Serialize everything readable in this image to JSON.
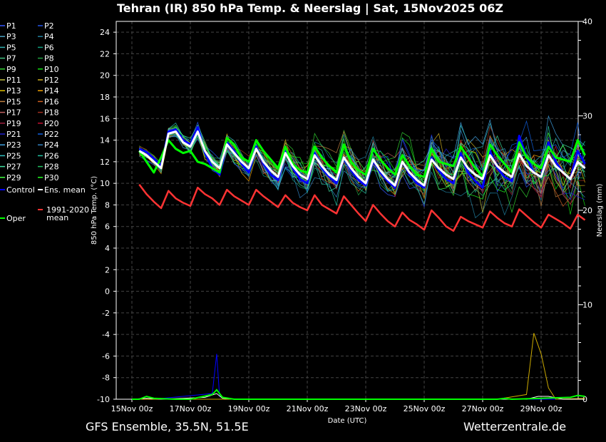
{
  "title": "Tehran  (IR)  850 hPa Temp. & Neerslag | Sat, 15Nov2025 06Z",
  "footer_left": "GFS Ensemble, 35.5N, 51.5E",
  "footer_right": "Wetterzentrale.de",
  "chart_data": {
    "type": "line",
    "title": "Tehran  (IR)  850 hPa Temp. & Neerslag | Sat, 15Nov2025 06Z",
    "xlabel": "Date (UTC)",
    "ylabel": "850 hPa Temp. (°C)",
    "y2label": "Neerslag (mm)",
    "ylim": [
      -10,
      25
    ],
    "y2lim": [
      0,
      40
    ],
    "yticks": [
      -10,
      -8,
      -6,
      -4,
      -2,
      0,
      2,
      4,
      6,
      8,
      10,
      12,
      14,
      16,
      18,
      20,
      22,
      24
    ],
    "y2ticks": [
      0,
      10,
      20,
      30,
      40
    ],
    "xticks": [
      "15Nov 00z",
      "17Nov 00z",
      "19Nov 00z",
      "21Nov 00z",
      "23Nov 00z",
      "25Nov 00z",
      "27Nov 00z",
      "29Nov 00z"
    ],
    "grid": true,
    "legend_position": "left",
    "x_days": [
      0.25,
      0.5,
      0.75,
      1.0,
      1.25,
      1.5,
      1.75,
      2.0,
      2.25,
      2.5,
      2.75,
      3.0,
      3.25,
      3.5,
      3.75,
      4.0,
      4.25,
      4.5,
      4.75,
      5.0,
      5.25,
      5.5,
      5.75,
      6.0,
      6.25,
      6.5,
      6.75,
      7.0,
      7.25,
      7.5,
      7.75,
      8.0,
      8.25,
      8.5,
      8.75,
      9.0,
      9.25,
      9.5,
      9.75,
      10.0,
      10.25,
      10.5,
      10.75,
      11.0,
      11.25,
      11.5,
      11.75,
      12.0,
      12.25,
      12.5,
      12.75,
      13.0,
      13.25,
      13.5,
      13.75,
      14.0,
      14.25,
      14.5,
      14.75,
      15.0,
      15.25,
      15.5
    ],
    "series": [
      {
        "name": "Ens. mean",
        "role": "mean",
        "color": "#ffffff",
        "values": [
          13.0,
          12.6,
          12.0,
          11.4,
          14.6,
          14.8,
          13.8,
          13.4,
          14.8,
          13.0,
          12.0,
          11.4,
          13.6,
          12.8,
          12.0,
          11.4,
          13.2,
          12.0,
          11.2,
          10.6,
          12.8,
          11.6,
          10.8,
          10.4,
          12.6,
          11.6,
          10.8,
          10.3,
          12.4,
          11.4,
          10.6,
          10.0,
          12.2,
          11.2,
          10.4,
          9.8,
          12.0,
          11.0,
          10.3,
          9.8,
          12.2,
          11.4,
          10.8,
          10.4,
          12.4,
          11.4,
          10.8,
          10.4,
          12.6,
          11.6,
          11.0,
          10.6,
          12.7,
          11.6,
          11.0,
          10.6,
          12.6,
          11.6,
          11.0,
          10.4,
          12.0,
          11.4
        ]
      },
      {
        "name": "Control",
        "role": "control",
        "color": "#0000ff",
        "values": [
          13.2,
          12.9,
          12.3,
          11.6,
          14.8,
          15.0,
          14.0,
          13.6,
          15.2,
          12.8,
          11.4,
          10.8,
          13.8,
          13.0,
          11.8,
          11.0,
          13.4,
          11.8,
          10.8,
          10.3,
          13.0,
          11.4,
          10.4,
          10.0,
          12.8,
          11.4,
          10.6,
          10.0,
          12.4,
          11.2,
          10.3,
          9.8,
          12.1,
          11.0,
          10.2,
          9.6,
          12.0,
          10.8,
          10.0,
          9.6,
          12.4,
          11.2,
          10.4,
          10.0,
          12.8,
          11.0,
          10.2,
          9.6,
          13.0,
          11.4,
          10.6,
          10.2,
          14.4,
          12.4,
          11.0,
          10.6,
          13.8,
          12.0,
          11.0,
          10.4,
          13.0,
          11.8
        ]
      },
      {
        "name": "Oper",
        "role": "oper",
        "color": "#00ff00",
        "values": [
          13.0,
          12.0,
          11.0,
          12.4,
          14.0,
          13.2,
          12.8,
          13.0,
          12.0,
          11.8,
          11.4,
          11.0,
          14.2,
          13.6,
          12.4,
          12.0,
          14.0,
          13.0,
          12.2,
          11.4,
          13.4,
          11.8,
          11.2,
          11.0,
          13.4,
          12.4,
          11.6,
          11.0,
          13.6,
          12.0,
          11.2,
          10.8,
          13.2,
          12.2,
          11.4,
          10.8,
          12.6,
          11.6,
          10.8,
          10.6,
          13.2,
          12.0,
          11.8,
          11.6,
          13.4,
          12.4,
          11.4,
          10.6,
          13.6,
          12.6,
          11.8,
          11.0,
          13.8,
          12.4,
          11.8,
          11.4,
          13.4,
          12.4,
          12.2,
          12.0,
          14.0,
          12.6
        ]
      },
      {
        "name": "1991-2020 mean",
        "role": "climate",
        "color": "#ff3333",
        "values": [
          9.9,
          9.0,
          8.3,
          7.7,
          9.3,
          8.6,
          8.2,
          7.9,
          9.6,
          9.0,
          8.6,
          8.0,
          9.4,
          8.8,
          8.4,
          8.0,
          9.4,
          8.8,
          8.3,
          7.8,
          8.9,
          8.2,
          7.8,
          7.5,
          8.9,
          8.0,
          7.6,
          7.2,
          8.8,
          8.0,
          7.2,
          6.5,
          8.0,
          7.2,
          6.5,
          6.0,
          7.3,
          6.6,
          6.2,
          5.7,
          7.5,
          6.8,
          6.0,
          5.6,
          6.9,
          6.5,
          6.2,
          5.9,
          7.4,
          6.8,
          6.3,
          6.0,
          7.6,
          7.0,
          6.4,
          5.9,
          7.1,
          6.7,
          6.3,
          5.8,
          7.1,
          6.6
        ]
      }
    ],
    "members": [
      "P1",
      "P2",
      "P3",
      "P4",
      "P5",
      "P6",
      "P7",
      "P8",
      "P9",
      "P10",
      "P11",
      "P12",
      "P13",
      "P14",
      "P15",
      "P16",
      "P17",
      "P18",
      "P19",
      "P20",
      "P21",
      "P22",
      "P23",
      "P24",
      "P25",
      "P26",
      "P27",
      "P28",
      "P29",
      "P30"
    ],
    "precip_series": [
      {
        "name": "Control",
        "color": "#0000ff",
        "points": [
          [
            0,
            0
          ],
          [
            0.75,
            0
          ],
          [
            1.75,
            0.3
          ],
          [
            2.75,
            0.6
          ],
          [
            2.9,
            4.8
          ],
          [
            3.0,
            0.3
          ],
          [
            3.25,
            0
          ],
          [
            15.5,
            0
          ]
        ]
      },
      {
        "name": "P13",
        "color": "#ccaa00",
        "points": [
          [
            0,
            0
          ],
          [
            12.5,
            0
          ],
          [
            13.5,
            0.5
          ],
          [
            13.75,
            7.0
          ],
          [
            14.0,
            4.8
          ],
          [
            14.25,
            1.2
          ],
          [
            14.5,
            0
          ],
          [
            15.5,
            0.1
          ]
        ]
      },
      {
        "name": "Ens. mean",
        "color": "#ffffff",
        "points": [
          [
            0,
            0
          ],
          [
            0.5,
            0.1
          ],
          [
            1.0,
            0
          ],
          [
            2.5,
            0.2
          ],
          [
            2.9,
            0.6
          ],
          [
            3.1,
            0.1
          ],
          [
            3.5,
            0
          ],
          [
            13.5,
            0
          ],
          [
            13.9,
            0.3
          ],
          [
            14.25,
            0.3
          ],
          [
            14.75,
            0
          ],
          [
            15.5,
            0
          ]
        ]
      },
      {
        "name": "Oper",
        "color": "#00ff00",
        "points": [
          [
            0,
            0
          ],
          [
            0.25,
            0
          ],
          [
            0.5,
            0.3
          ],
          [
            0.75,
            0.1
          ],
          [
            1.5,
            0
          ],
          [
            2.0,
            0
          ],
          [
            2.75,
            0.5
          ],
          [
            2.9,
            1.0
          ],
          [
            3.1,
            0.2
          ],
          [
            3.5,
            0
          ],
          [
            12.5,
            0
          ],
          [
            12.75,
            0.1
          ],
          [
            13.0,
            0
          ],
          [
            15.0,
            0.2
          ],
          [
            15.25,
            0.4
          ],
          [
            15.5,
            0.3
          ]
        ]
      }
    ]
  }
}
